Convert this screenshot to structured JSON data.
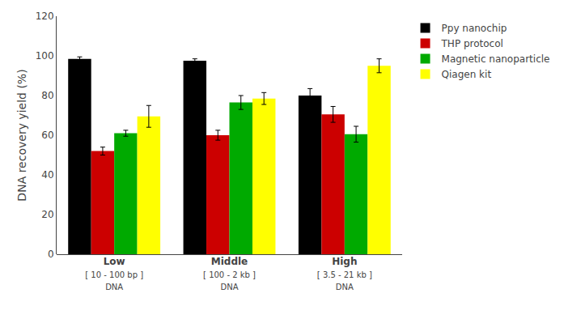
{
  "chart_data": {
    "type": "bar",
    "categories": [
      "Low\n[ 10 - 100 bp ]\nDNA",
      "Middle\n[ 100 - 2 kb ]\nDNA",
      "High\n[ 3.5 - 21 kb ]\nDNA"
    ],
    "series": [
      {
        "name": "Ppy nanochip",
        "color": "#000000",
        "values": [
          98.5,
          97.5,
          80.0
        ],
        "errors": [
          1.0,
          1.0,
          3.5
        ]
      },
      {
        "name": "THP protocol",
        "color": "#cc0000",
        "values": [
          52.0,
          60.0,
          70.5
        ],
        "errors": [
          2.0,
          2.5,
          4.0
        ]
      },
      {
        "name": "Magnetic nanoparticle",
        "color": "#00aa00",
        "values": [
          61.0,
          76.5,
          60.5
        ],
        "errors": [
          1.5,
          3.5,
          4.0
        ]
      },
      {
        "name": "Qiagen kit",
        "color": "#ffff00",
        "values": [
          69.5,
          78.5,
          95.0
        ],
        "errors": [
          5.5,
          3.0,
          3.5
        ]
      }
    ],
    "ylabel": "DNA recovery yield (%)",
    "ylim": [
      0,
      120
    ],
    "yticks": [
      0,
      20,
      40,
      60,
      80,
      100,
      120
    ],
    "grid": false,
    "legend": "right"
  }
}
